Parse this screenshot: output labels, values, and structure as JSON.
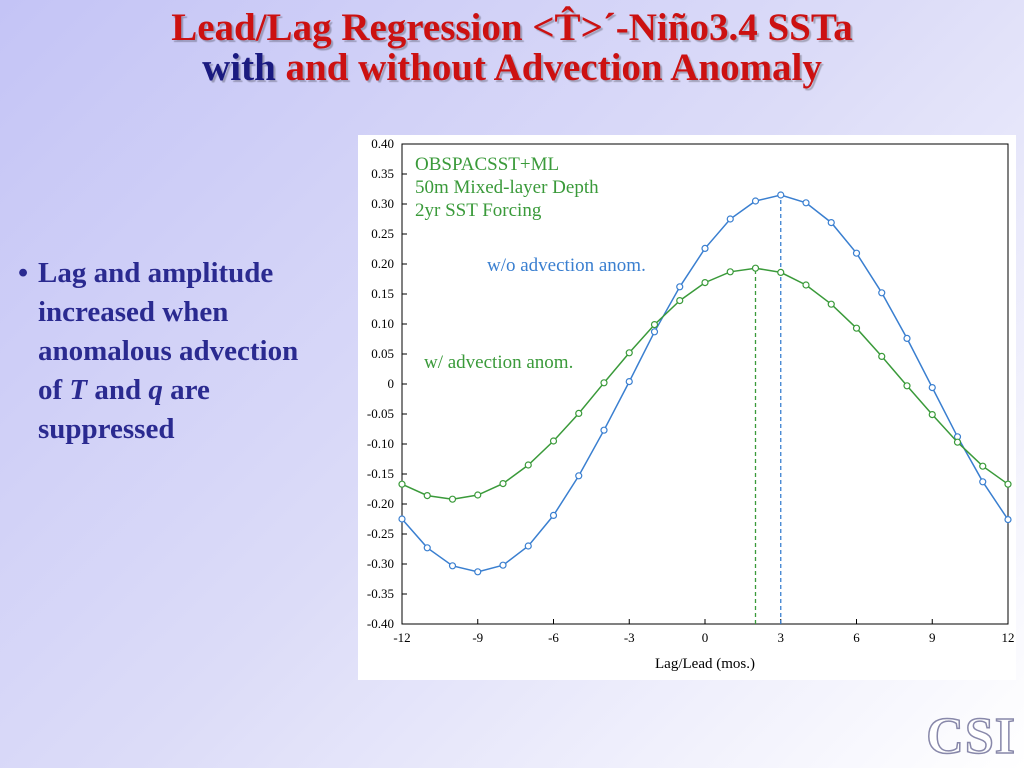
{
  "title": {
    "line1": "Lead/Lag Regression <T̂>´-Niño3.4 SSTa",
    "line2_part1": "with",
    "line2_part2": "and without",
    "line2_part3": "Advection Anomaly"
  },
  "bullet": {
    "dot": "•",
    "text_a": "Lag and amplitude increased when anomalous advection of ",
    "T": "T",
    "text_b": " and ",
    "q": "q",
    "text_c": " are suppressed"
  },
  "logo": "CSI",
  "chart_data": {
    "type": "line",
    "xlabel": "Lag/Lead (mos.)",
    "ylabel": "",
    "xlim": [
      -12,
      12
    ],
    "ylim": [
      -0.4,
      0.4
    ],
    "xticks": [
      -12,
      -9,
      -6,
      -3,
      0,
      3,
      6,
      9,
      12
    ],
    "yticks": [
      0.4,
      0.35,
      0.3,
      0.25,
      0.2,
      0.15,
      0.1,
      0.05,
      0,
      -0.05,
      -0.1,
      -0.15,
      -0.2,
      -0.25,
      -0.3,
      -0.35,
      -0.4
    ],
    "ytick_labels": [
      "0.40",
      "0.35",
      "0.30",
      "0.25",
      "0.20",
      "0.15",
      "0.10",
      "0.05",
      "0",
      "-0.05",
      "-0.10",
      "-0.15",
      "-0.20",
      "-0.25",
      "-0.30",
      "-0.35",
      "-0.40"
    ],
    "annotations": [
      "OBSPACSST+ML",
      "50m Mixed-layer Depth",
      "2yr SST Forcing"
    ],
    "series": [
      {
        "name": "w/o advection anom.",
        "color": "#3a7fd0",
        "peak_lag": 3,
        "x": [
          -12,
          -11,
          -10,
          -9,
          -8,
          -7,
          -6,
          -5,
          -4,
          -3,
          -2,
          -1,
          0,
          1,
          2,
          3,
          4,
          5,
          6,
          7,
          8,
          9,
          10,
          11,
          12
        ],
        "values": [
          -0.225,
          -0.273,
          -0.303,
          -0.313,
          -0.302,
          -0.27,
          -0.219,
          -0.153,
          -0.077,
          0.004,
          0.087,
          0.162,
          0.226,
          0.275,
          0.305,
          0.315,
          0.302,
          0.269,
          0.218,
          0.152,
          0.076,
          -0.006,
          -0.088,
          -0.163,
          -0.226
        ]
      },
      {
        "name": "w/ advection anom.",
        "color": "#3a9a3a",
        "peak_lag": 2,
        "x": [
          -12,
          -11,
          -10,
          -9,
          -8,
          -7,
          -6,
          -5,
          -4,
          -3,
          -2,
          -1,
          0,
          1,
          2,
          3,
          4,
          5,
          6,
          7,
          8,
          9,
          10,
          11,
          12
        ],
        "values": [
          -0.167,
          -0.186,
          -0.192,
          -0.185,
          -0.166,
          -0.135,
          -0.095,
          -0.049,
          0.002,
          0.052,
          0.099,
          0.139,
          0.169,
          0.187,
          0.193,
          0.186,
          0.165,
          0.133,
          0.093,
          0.046,
          -0.003,
          -0.051,
          -0.097,
          -0.137,
          -0.167
        ]
      }
    ]
  }
}
